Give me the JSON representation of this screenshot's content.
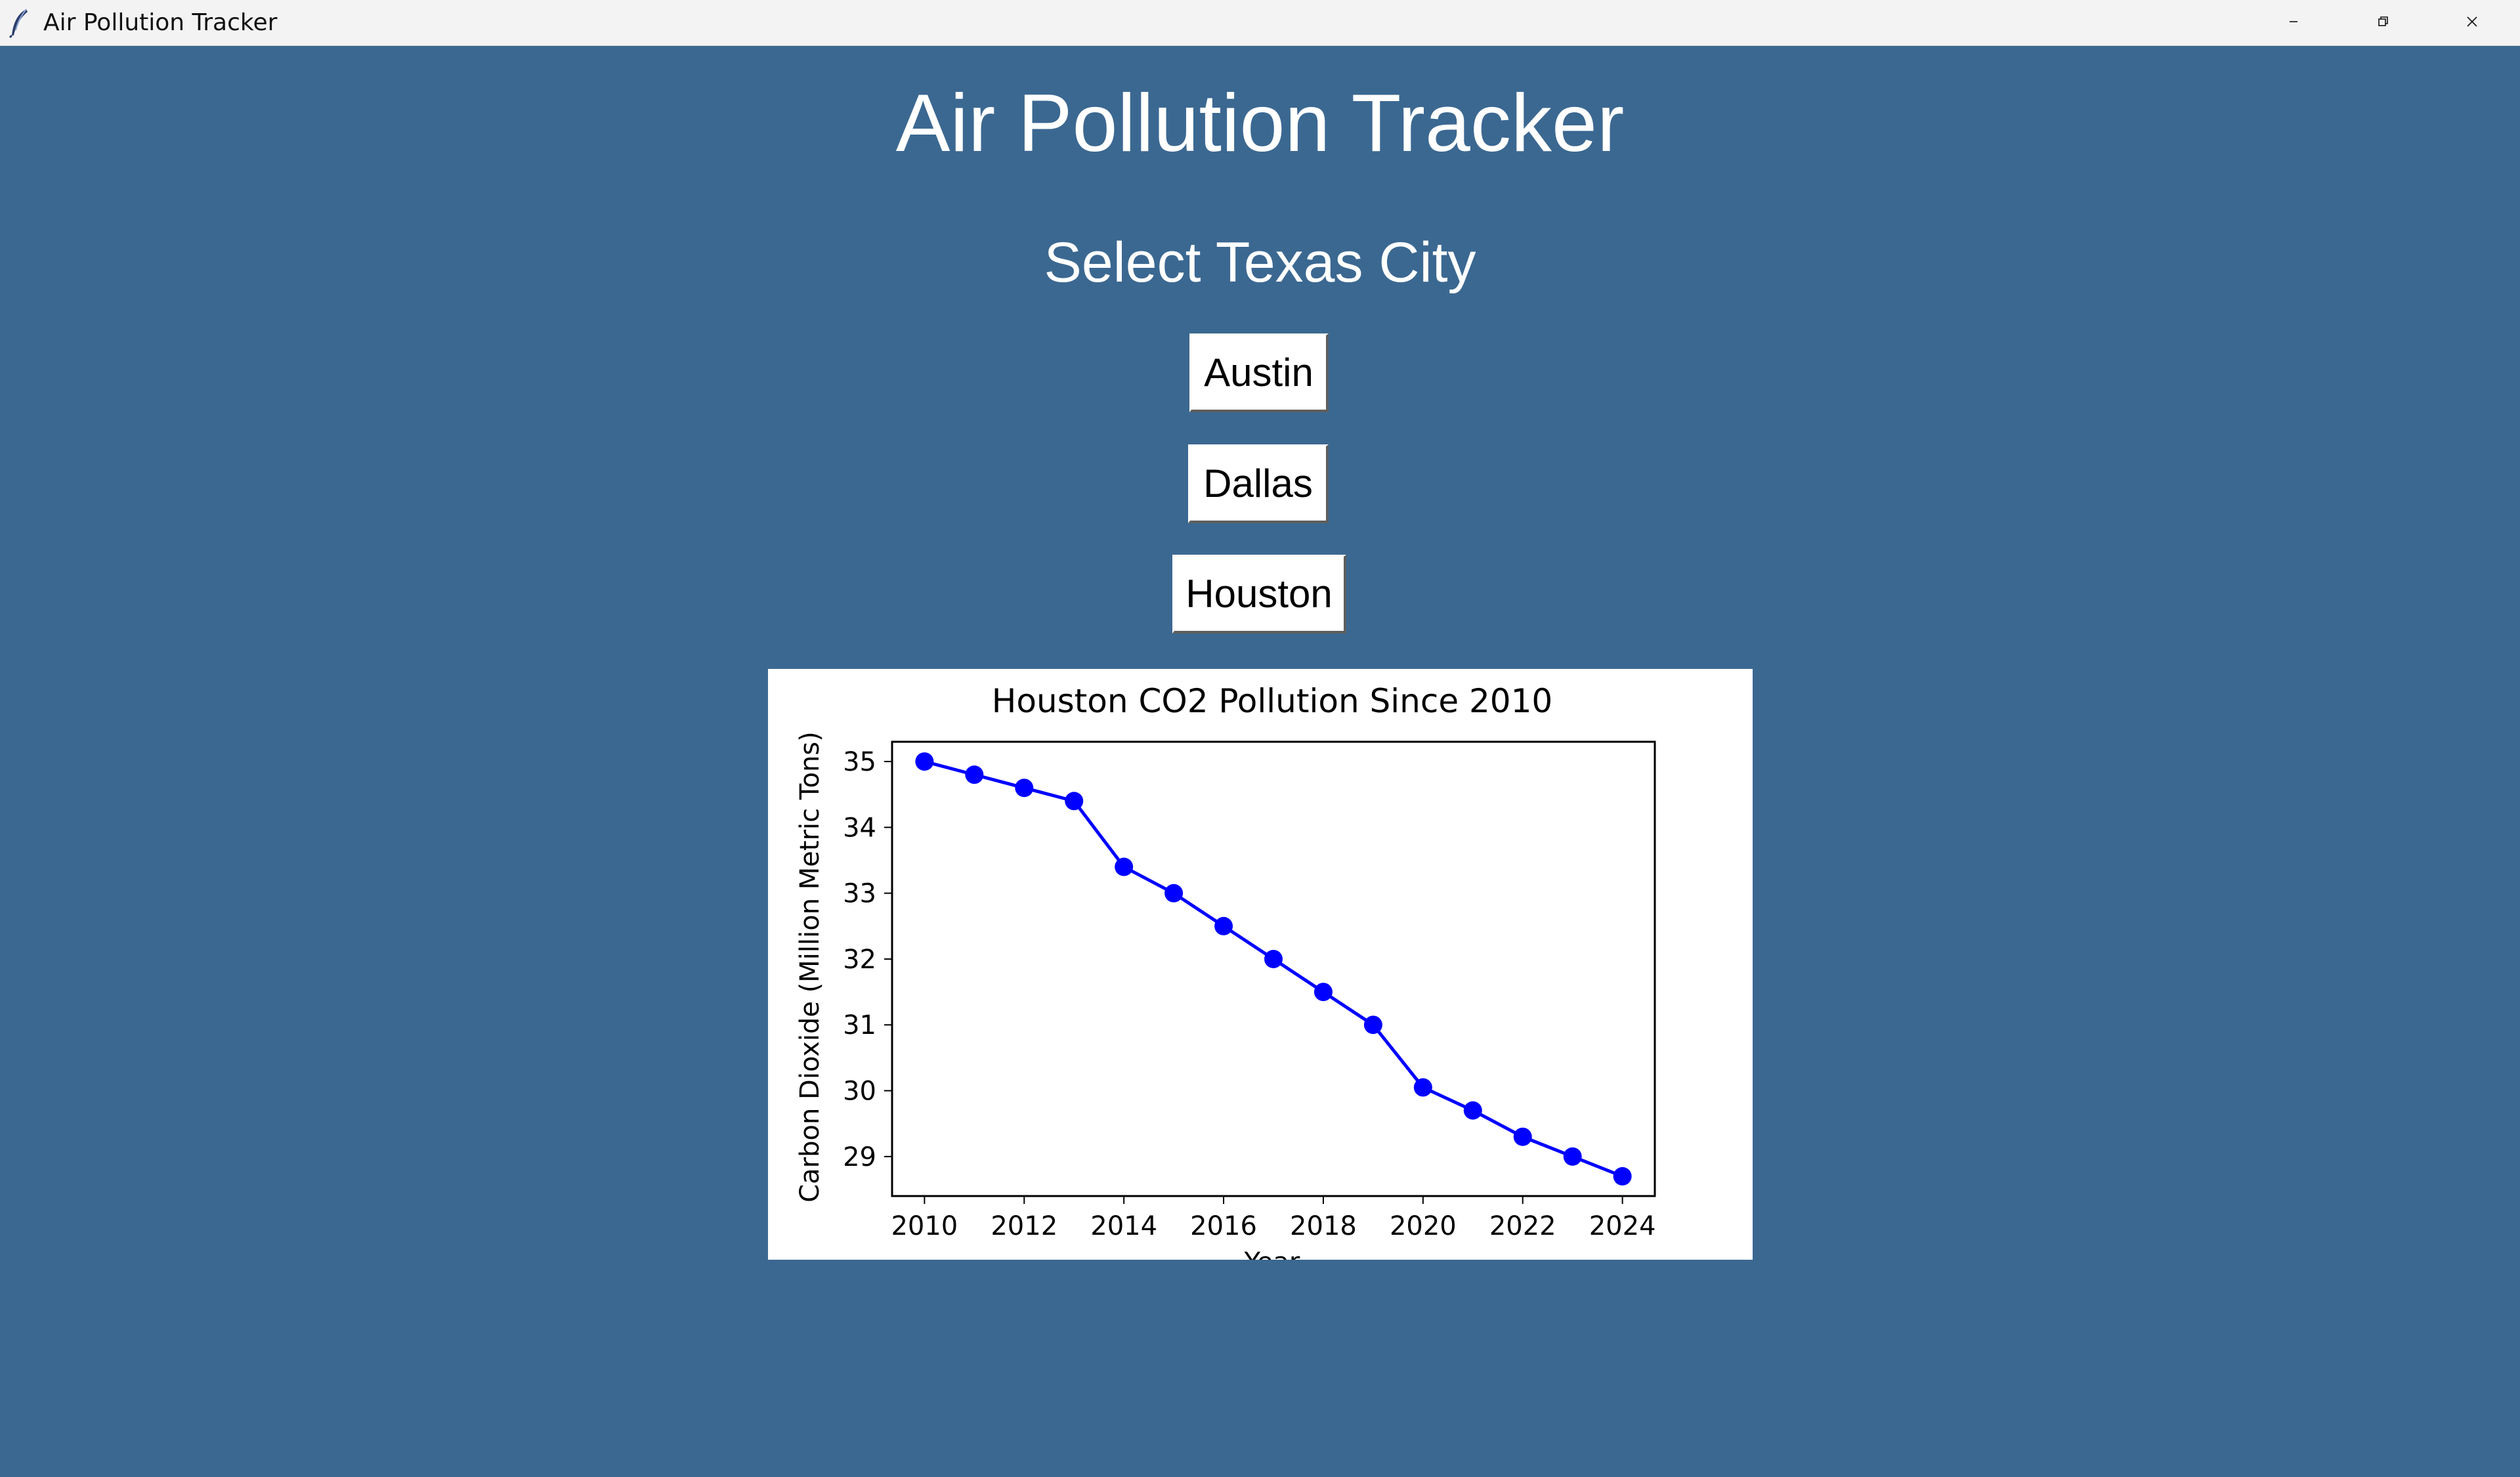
{
  "window": {
    "title": "Air Pollution Tracker",
    "icons": [
      "feather-icon",
      "minimize-icon",
      "maximize-icon",
      "close-icon"
    ]
  },
  "main": {
    "heading": "Air Pollution Tracker",
    "subheading": "Select Texas City",
    "buttons": [
      "Austin",
      "Dallas",
      "Houston"
    ]
  },
  "colors": {
    "background": "#3b6891",
    "series": "#0000ff",
    "button_bg": "#ffffff"
  },
  "chart_data": {
    "type": "line",
    "title": "Houston CO2 Pollution Since 2010",
    "xlabel": "Year",
    "ylabel": "Carbon Dioxide (Million Metric Tons)",
    "x": [
      2010,
      2011,
      2012,
      2013,
      2014,
      2015,
      2016,
      2017,
      2018,
      2019,
      2020,
      2021,
      2022,
      2023,
      2024
    ],
    "series": [
      {
        "values": [
          35.0,
          34.8,
          34.6,
          34.4,
          33.4,
          33.0,
          32.5,
          32.0,
          31.5,
          31.0,
          30.05,
          29.7,
          29.3,
          29.0,
          28.7
        ],
        "color": "#0000ff",
        "marker": "circle"
      }
    ],
    "xticks": [
      "2010",
      "2012",
      "2014",
      "2016",
      "2018",
      "2020",
      "2022",
      "2024"
    ],
    "yticks": [
      "29",
      "30",
      "31",
      "32",
      "33",
      "34",
      "35"
    ],
    "xlim": [
      2009.35,
      2024.65
    ],
    "ylim": [
      28.4,
      35.3
    ],
    "grid": false
  }
}
